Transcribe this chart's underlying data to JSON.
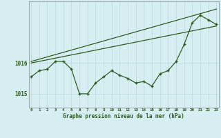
{
  "title": "Graphe pression niveau de la mer (hPa)",
  "x_labels": [
    "0",
    "1",
    "2",
    "3",
    "4",
    "5",
    "6",
    "7",
    "8",
    "9",
    "10",
    "11",
    "12",
    "13",
    "14",
    "15",
    "16",
    "17",
    "18",
    "19",
    "20",
    "21",
    "22",
    "23"
  ],
  "x_values": [
    0,
    1,
    2,
    3,
    4,
    5,
    6,
    7,
    8,
    9,
    10,
    11,
    12,
    13,
    14,
    15,
    16,
    17,
    18,
    19,
    20,
    21,
    22,
    23
  ],
  "main_line": [
    1015.55,
    1015.75,
    1015.8,
    1016.05,
    1016.05,
    1015.8,
    1015.0,
    1015.0,
    1015.35,
    1015.55,
    1015.75,
    1015.6,
    1015.5,
    1015.35,
    1015.4,
    1015.25,
    1015.65,
    1015.75,
    1016.05,
    1016.6,
    1017.3,
    1017.55,
    1017.4,
    1017.25
  ],
  "upper_line": [
    1016.05,
    1017.75
  ],
  "lower_line": [
    1016.0,
    1017.2
  ],
  "bg_color": "#d6eef2",
  "line_color": "#2d5a1b",
  "grid_color": "#b8d8dc",
  "yticks": [
    1015,
    1016
  ],
  "ylim": [
    1014.55,
    1018.0
  ],
  "xlim": [
    -0.3,
    23.3
  ],
  "fig_width": 3.2,
  "fig_height": 2.0,
  "dpi": 100
}
